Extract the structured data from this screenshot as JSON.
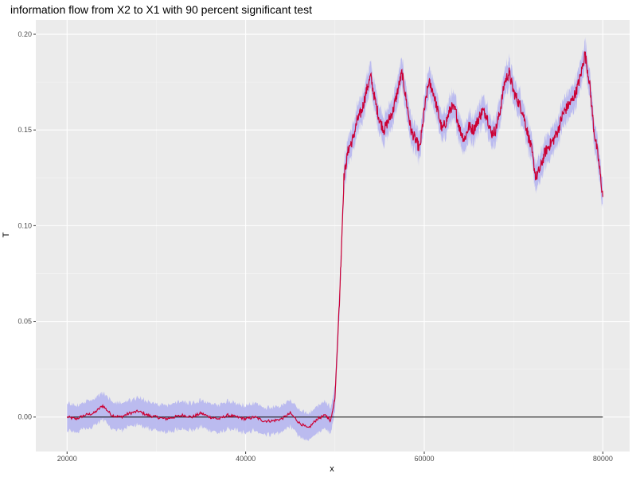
{
  "chart_data": {
    "type": "line",
    "title": "information flow from X2 to X1 with 90 percent significant test",
    "xlabel": "x",
    "ylabel": "T",
    "xlim": [
      16500,
      83000
    ],
    "ylim": [
      -0.018,
      0.2075
    ],
    "x_ticks": [
      20000,
      40000,
      60000,
      80000
    ],
    "y_ticks": [
      0.0,
      0.05,
      0.1,
      0.15,
      0.2
    ],
    "x_tick_labels": [
      "20000",
      "40000",
      "60000",
      "80000"
    ],
    "y_tick_labels": [
      "0.00",
      "0.05",
      "0.10",
      "0.15",
      "0.20"
    ],
    "grid": true,
    "background": "#ebebeb",
    "colors": {
      "line": "#cc0033",
      "band": "#b3b3f0",
      "reference_line": "#000000"
    },
    "reference_line_y": 0,
    "reference_line_x_range": [
      20000,
      80000
    ],
    "band_halfwidth": 0.006,
    "series": [
      {
        "x": [
          20000,
          21000,
          22000,
          23000,
          24000,
          25000,
          26000,
          27000,
          28000,
          29000,
          30000,
          31000,
          32000,
          33000,
          34000,
          35000,
          36000,
          37000,
          38000,
          39000,
          40000,
          41000,
          42000,
          43000,
          44000,
          45000,
          46000,
          47000,
          48000,
          49000,
          49500,
          50000,
          50500,
          51000,
          51500,
          52000,
          52500,
          53000,
          53500,
          54000,
          54500,
          55000,
          55500,
          56000,
          56500,
          57000,
          57500,
          58000,
          58500,
          59000,
          59500,
          60000,
          60500,
          61000,
          61500,
          62000,
          62500,
          63000,
          63500,
          64000,
          64500,
          65000,
          65500,
          66000,
          66500,
          67000,
          67500,
          68000,
          68500,
          69000,
          69500,
          70000,
          70500,
          71000,
          71500,
          72000,
          72500,
          73000,
          73500,
          74000,
          74500,
          75000,
          75500,
          76000,
          76500,
          77000,
          77500,
          78000,
          78500,
          79000,
          79500,
          80000
        ],
        "y": [
          0.0,
          -0.001,
          0.001,
          0.002,
          0.006,
          0.001,
          0.0,
          0.002,
          0.003,
          0.001,
          0.0,
          -0.001,
          0.0,
          0.001,
          0.0,
          0.002,
          0.0,
          -0.001,
          0.001,
          0.0,
          -0.001,
          0.0,
          -0.002,
          -0.002,
          -0.001,
          0.002,
          -0.003,
          -0.006,
          -0.001,
          0.001,
          -0.002,
          0.01,
          0.06,
          0.125,
          0.14,
          0.145,
          0.155,
          0.16,
          0.17,
          0.178,
          0.165,
          0.155,
          0.15,
          0.155,
          0.16,
          0.17,
          0.18,
          0.165,
          0.15,
          0.145,
          0.14,
          0.16,
          0.175,
          0.17,
          0.16,
          0.15,
          0.155,
          0.162,
          0.16,
          0.15,
          0.145,
          0.152,
          0.15,
          0.155,
          0.16,
          0.158,
          0.148,
          0.15,
          0.16,
          0.175,
          0.18,
          0.17,
          0.165,
          0.16,
          0.15,
          0.14,
          0.125,
          0.13,
          0.138,
          0.142,
          0.145,
          0.15,
          0.158,
          0.162,
          0.165,
          0.17,
          0.178,
          0.19,
          0.175,
          0.15,
          0.135,
          0.115
        ]
      }
    ]
  }
}
